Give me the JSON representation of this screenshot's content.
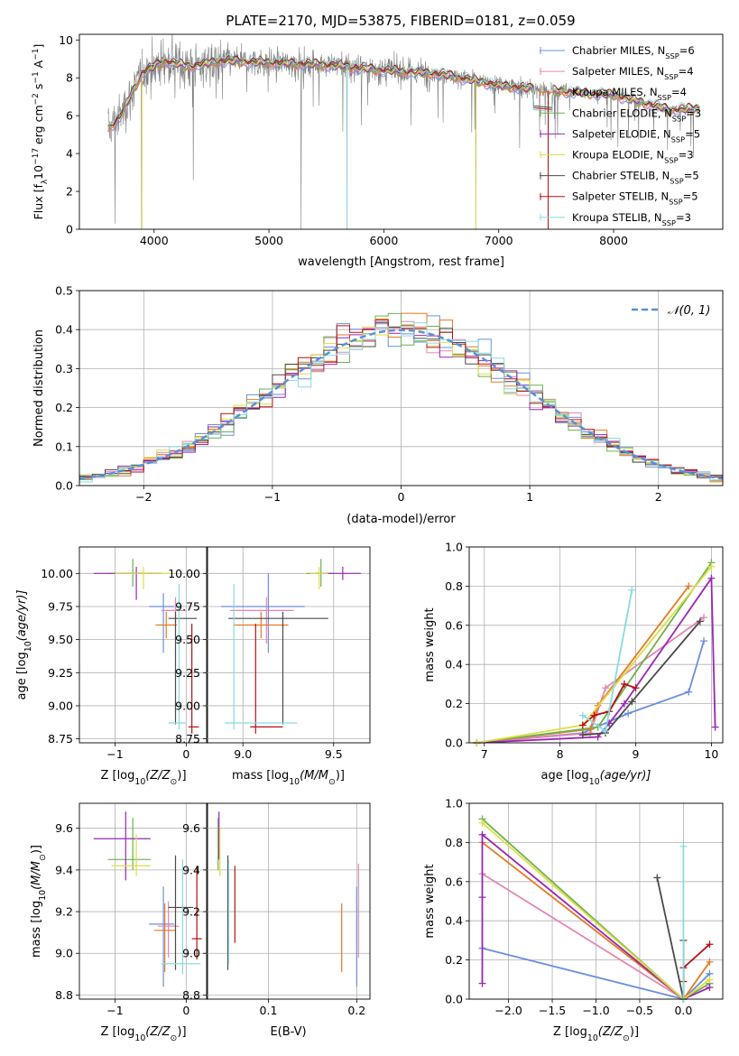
{
  "title": "PLATE=2170, MJD=53875, FIBERID=0181, z=0.059",
  "colors": {
    "Chabrier MILES": "#6a8fdc",
    "Salpeter MILES": "#e685b4",
    "Kroupa MILES": "#e67a21",
    "Chabrier ELODIE": "#6cb24a",
    "Salpeter ELODIE": "#9a27b2",
    "Kroupa ELODIE": "#dede46",
    "Chabrier STELIB": "#4a4a4a",
    "Salpeter STELIB": "#b31212",
    "Kroupa STELIB": "#86dce0",
    "data": "#808080",
    "normal": "#5b8fd8"
  },
  "legend_spectrum": [
    {
      "lib": "Chabrier MILES",
      "n": "6"
    },
    {
      "lib": "Salpeter MILES",
      "n": "4"
    },
    {
      "lib": "Kroupa MILES",
      "n": "4"
    },
    {
      "lib": "Chabrier ELODIE",
      "n": "3"
    },
    {
      "lib": "Salpeter ELODIE",
      "n": "5"
    },
    {
      "lib": "Kroupa ELODIE",
      "n": "3"
    },
    {
      "lib": "Chabrier STELIB",
      "n": "5"
    },
    {
      "lib": "Salpeter STELIB",
      "n": "5"
    },
    {
      "lib": "Kroupa STELIB",
      "n": "3"
    }
  ],
  "legend_hist": {
    "label": "𝒩(0, 1)"
  },
  "chart_data": [
    {
      "id": "spectrum",
      "type": "line",
      "xlabel": "wavelength [Angstrom, rest frame]",
      "ylabel_parts": [
        "Flux [f",
        "λ",
        "10",
        "−17",
        " erg cm",
        "−2",
        " s",
        "−1",
        " A",
        "−1",
        "]"
      ],
      "xlim": [
        3350,
        8950
      ],
      "ylim": [
        0,
        10.3
      ],
      "xticks": [
        4000,
        5000,
        6000,
        7000,
        8000
      ],
      "yticks": [
        0,
        2,
        4,
        6,
        8,
        10
      ],
      "grid": false,
      "legend_position": "top-right",
      "continuum_knots": [
        [
          3600,
          5.3
        ],
        [
          3700,
          5.9
        ],
        [
          3900,
          8.3
        ],
        [
          4100,
          8.9
        ],
        [
          4300,
          8.6
        ],
        [
          4600,
          8.9
        ],
        [
          5000,
          8.8
        ],
        [
          5500,
          8.7
        ],
        [
          6000,
          8.4
        ],
        [
          6500,
          8.2
        ],
        [
          7000,
          7.6
        ],
        [
          7500,
          7.3
        ],
        [
          8000,
          7.1
        ],
        [
          8500,
          6.3
        ],
        [
          8750,
          6.4
        ]
      ],
      "dropouts": [
        [
          3660,
          0.3
        ],
        [
          3890,
          0
        ],
        [
          4340,
          2.6
        ],
        [
          5280,
          0
        ],
        [
          5680,
          0
        ],
        [
          6800,
          0
        ],
        [
          7430,
          0
        ]
      ]
    },
    {
      "id": "residual-hist",
      "type": "histogram",
      "xlabel": "(data-model)/error",
      "ylabel": "Normed distribution",
      "xlim": [
        -2.5,
        2.5
      ],
      "ylim": [
        0,
        0.5
      ],
      "xticks": [
        -2,
        -1,
        0,
        1,
        2
      ],
      "yticks": [
        0.0,
        0.1,
        0.2,
        0.3,
        0.4,
        0.5
      ],
      "grid": true,
      "bin_width": 0.1,
      "overlay": "normal pdf, mean 0, sigma 1"
    },
    {
      "id": "age-vs-z",
      "type": "errorbar",
      "xlabel_parts": [
        "Z [log",
        "10",
        "(Z/Z",
        "⊙",
        ")]"
      ],
      "ylabel_parts": [
        "age  [log",
        "10",
        "(age/yr)]"
      ],
      "xlim": [
        -1.5,
        0.3
      ],
      "ylim": [
        8.72,
        10.2
      ],
      "xticks": [
        -1,
        0
      ],
      "yticks": [
        8.75,
        9.0,
        9.25,
        9.5,
        9.75,
        10.0
      ],
      "grid": true,
      "points": [
        {
          "lib": "Chabrier MILES",
          "x": -0.32,
          "xerr": [
            0.2,
            0.15
          ],
          "y": 9.75,
          "yerr": [
            0.35,
            0.1
          ]
        },
        {
          "lib": "Salpeter MILES",
          "x": -0.15,
          "xerr": [
            0.2,
            0.15
          ],
          "y": 9.72,
          "yerr": [
            0.1,
            0.1
          ]
        },
        {
          "lib": "Kroupa MILES",
          "x": -0.28,
          "xerr": [
            0.15,
            0.15
          ],
          "y": 9.61,
          "yerr": [
            0.1,
            0.1
          ]
        },
        {
          "lib": "Chabrier ELODIE",
          "x": -0.75,
          "xerr": [
            0.35,
            0.3
          ],
          "y": 10.0,
          "yerr": [
            0.1,
            0.11
          ]
        },
        {
          "lib": "Salpeter ELODIE",
          "x": -0.7,
          "xerr": [
            0.6,
            0.35
          ],
          "y": 10.0,
          "yerr": [
            0.2,
            0.05
          ]
        },
        {
          "lib": "Kroupa ELODIE",
          "x": -0.6,
          "xerr": [
            0.4,
            0.4
          ],
          "y": 10.0,
          "yerr": [
            0.12,
            0.05
          ]
        },
        {
          "lib": "Chabrier STELIB",
          "x": -0.15,
          "xerr": [
            0.1,
            0.3
          ],
          "y": 9.66,
          "yerr": [
            0.8,
            0.05
          ]
        },
        {
          "lib": "Salpeter STELIB",
          "x": 0.08,
          "xerr": [
            0.05,
            0.1
          ],
          "y": 8.84,
          "yerr": [
            0.05,
            0.78
          ]
        },
        {
          "lib": "Kroupa STELIB",
          "x": -0.1,
          "xerr": [
            0.15,
            0.1
          ],
          "y": 8.87,
          "yerr": [
            0.05,
            1.05
          ]
        }
      ]
    },
    {
      "id": "age-vs-mass",
      "type": "errorbar",
      "xlabel_parts": [
        "mass [log",
        "10",
        "(M/M",
        "⊙",
        ")]"
      ],
      "ylabel_parts": [],
      "xlim": [
        8.8,
        9.7
      ],
      "ylim": [
        8.72,
        10.2
      ],
      "xticks": [
        9.0,
        9.5
      ],
      "yticks": [
        8.75,
        9.0,
        9.25,
        9.5,
        9.75,
        10.0
      ],
      "grid": true,
      "points": [
        {
          "lib": "Chabrier MILES",
          "x": 9.14,
          "xerr": [
            0.26,
            0.2
          ],
          "y": 9.75,
          "yerr": [
            0.35,
            0.25
          ]
        },
        {
          "lib": "Salpeter MILES",
          "x": 9.13,
          "xerr": [
            0.2,
            0.15
          ],
          "y": 9.72,
          "yerr": [
            0.25,
            0.1
          ]
        },
        {
          "lib": "Kroupa MILES",
          "x": 9.1,
          "xerr": [
            0.15,
            0.15
          ],
          "y": 9.61,
          "yerr": [
            0.1,
            0.1
          ]
        },
        {
          "lib": "Chabrier ELODIE",
          "x": 9.43,
          "xerr": [
            0.08,
            0.07
          ],
          "y": 10.0,
          "yerr": [
            0.1,
            0.11
          ]
        },
        {
          "lib": "Salpeter ELODIE",
          "x": 9.55,
          "xerr": [
            0.15,
            0.1
          ],
          "y": 10.0,
          "yerr": [
            0.05,
            0.05
          ]
        },
        {
          "lib": "Kroupa ELODIE",
          "x": 9.42,
          "xerr": [
            0.05,
            0.05
          ],
          "y": 10.0,
          "yerr": [
            0.12,
            0.05
          ]
        },
        {
          "lib": "Chabrier STELIB",
          "x": 9.22,
          "xerr": [
            0.3,
            0.25
          ],
          "y": 9.66,
          "yerr": [
            0.8,
            0.05
          ]
        },
        {
          "lib": "Salpeter STELIB",
          "x": 9.07,
          "xerr": [
            0.03,
            0.15
          ],
          "y": 8.84,
          "yerr": [
            0.05,
            0.78
          ]
        },
        {
          "lib": "Kroupa STELIB",
          "x": 8.95,
          "xerr": [
            0.05,
            0.35
          ],
          "y": 8.87,
          "yerr": [
            0.05,
            1.05
          ]
        }
      ]
    },
    {
      "id": "mass-weight-vs-age",
      "type": "line",
      "xlabel_parts": [
        "age  [log",
        "10",
        "(age/yr)]"
      ],
      "ylabel": "mass weight",
      "xlim": [
        6.8,
        10.15
      ],
      "ylim": [
        0,
        1
      ],
      "xticks": [
        7,
        8,
        9,
        10
      ],
      "yticks": [
        0.0,
        0.2,
        0.4,
        0.6,
        0.8,
        1.0
      ],
      "grid": true,
      "series": [
        {
          "lib": "Chabrier MILES",
          "x": [
            6.9,
            8.3,
            8.9,
            9.7,
            9.9
          ],
          "y": [
            0.0,
            0.05,
            0.15,
            0.26,
            0.52
          ]
        },
        {
          "lib": "Salpeter MILES",
          "x": [
            6.9,
            8.4,
            8.6,
            9.9
          ],
          "y": [
            0.0,
            0.05,
            0.28,
            0.64
          ]
        },
        {
          "lib": "Kroupa MILES",
          "x": [
            6.9,
            8.4,
            8.5,
            9.7
          ],
          "y": [
            0.0,
            0.07,
            0.19,
            0.8
          ]
        },
        {
          "lib": "Chabrier ELODIE",
          "x": [
            6.9,
            8.5,
            10.0
          ],
          "y": [
            0.0,
            0.08,
            0.92
          ]
        },
        {
          "lib": "Salpeter ELODIE",
          "x": [
            6.9,
            8.5,
            8.65,
            8.85,
            10.0,
            10.05
          ],
          "y": [
            0.0,
            0.03,
            0.1,
            0.2,
            0.84,
            0.08
          ]
        },
        {
          "lib": "Kroupa ELODIE",
          "x": [
            6.9,
            8.3,
            10.0
          ],
          "y": [
            0.0,
            0.09,
            0.9
          ]
        },
        {
          "lib": "Chabrier STELIB",
          "x": [
            8.3,
            8.6,
            8.95,
            9.85
          ],
          "y": [
            0.04,
            0.05,
            0.21,
            0.62
          ]
        },
        {
          "lib": "Salpeter STELIB",
          "x": [
            8.3,
            8.45,
            8.65,
            8.85,
            9.0
          ],
          "y": [
            0.09,
            0.14,
            0.16,
            0.3,
            0.28
          ]
        },
        {
          "lib": "Kroupa STELIB",
          "x": [
            8.3,
            8.6,
            8.95
          ],
          "y": [
            0.14,
            0.06,
            0.78
          ]
        }
      ]
    },
    {
      "id": "mass-vs-z",
      "type": "errorbar",
      "xlabel_parts": [
        "Z [log",
        "10",
        "(Z/Z",
        "⊙",
        ")]"
      ],
      "ylabel_parts": [
        "mass [log",
        "10",
        "(M/M",
        "⊙",
        ")]"
      ],
      "xlim": [
        -1.5,
        0.3
      ],
      "ylim": [
        8.78,
        9.72
      ],
      "xticks": [
        -1,
        0
      ],
      "yticks": [
        8.8,
        9.0,
        9.2,
        9.4,
        9.6
      ],
      "grid": true,
      "points": [
        {
          "lib": "Chabrier MILES",
          "x": -0.32,
          "xerr": [
            0.2,
            0.15
          ],
          "y": 9.14,
          "yerr": [
            0.3,
            0.18
          ]
        },
        {
          "lib": "Salpeter MILES",
          "x": -0.25,
          "xerr": [
            0.15,
            0.15
          ],
          "y": 9.13,
          "yerr": [
            0.15,
            0.12
          ]
        },
        {
          "lib": "Kroupa MILES",
          "x": -0.3,
          "xerr": [
            0.15,
            0.15
          ],
          "y": 9.11,
          "yerr": [
            0.2,
            0.13
          ]
        },
        {
          "lib": "Chabrier ELODIE",
          "x": -0.75,
          "xerr": [
            0.35,
            0.25
          ],
          "y": 9.45,
          "yerr": [
            0.05,
            0.2
          ]
        },
        {
          "lib": "Salpeter ELODIE",
          "x": -0.85,
          "xerr": [
            0.45,
            0.35
          ],
          "y": 9.55,
          "yerr": [
            0.2,
            0.13
          ]
        },
        {
          "lib": "Kroupa ELODIE",
          "x": -0.7,
          "xerr": [
            0.35,
            0.2
          ],
          "y": 9.42,
          "yerr": [
            0.05,
            0.15
          ]
        },
        {
          "lib": "Chabrier STELIB",
          "x": -0.15,
          "xerr": [
            0.1,
            0.25
          ],
          "y": 9.22,
          "yerr": [
            0.3,
            0.25
          ]
        },
        {
          "lib": "Salpeter STELIB",
          "x": 0.15,
          "xerr": [
            0.07,
            0.07
          ],
          "y": 9.07,
          "yerr": [
            0.1,
            0.35
          ]
        },
        {
          "lib": "Kroupa STELIB",
          "x": -0.05,
          "xerr": [
            0.3,
            0.25
          ],
          "y": 8.95,
          "yerr": [
            0.05,
            0.5
          ]
        }
      ]
    },
    {
      "id": "mass-vs-ebv",
      "type": "errorbar",
      "xlabel": "E(B-V)",
      "ylabel_parts": [],
      "xlim": [
        0.03,
        0.215
      ],
      "ylim": [
        8.78,
        9.72
      ],
      "xticks": [
        0.1,
        0.2
      ],
      "yticks": [
        8.8,
        9.0,
        9.2,
        9.4,
        9.6
      ],
      "grid": true,
      "points": [
        {
          "lib": "Chabrier MILES",
          "x": 0.2,
          "y": 9.14,
          "yerr": [
            0.3,
            0.18
          ]
        },
        {
          "lib": "Salpeter MILES",
          "x": 0.202,
          "y": 9.13,
          "yerr": [
            0.15,
            0.3
          ]
        },
        {
          "lib": "Kroupa MILES",
          "x": 0.183,
          "y": 9.11,
          "yerr": [
            0.2,
            0.13
          ]
        },
        {
          "lib": "Chabrier ELODIE",
          "x": 0.043,
          "y": 9.45,
          "yerr": [
            0.05,
            0.2
          ]
        },
        {
          "lib": "Salpeter ELODIE",
          "x": 0.044,
          "y": 9.55,
          "yerr": [
            0.1,
            0.13
          ]
        },
        {
          "lib": "Kroupa ELODIE",
          "x": 0.045,
          "y": 9.42,
          "yerr": [
            0.05,
            0.18
          ]
        },
        {
          "lib": "Chabrier STELIB",
          "x": 0.054,
          "y": 9.22,
          "yerr": [
            0.3,
            0.25
          ]
        },
        {
          "lib": "Salpeter STELIB",
          "x": 0.062,
          "y": 9.2,
          "yerr": [
            0.15,
            0.22
          ]
        },
        {
          "lib": "Kroupa STELIB",
          "x": 0.055,
          "y": 9.15,
          "yerr": [
            0.2,
            0.3
          ]
        }
      ]
    },
    {
      "id": "mass-weight-vs-z",
      "type": "line",
      "xlabel_parts": [
        "Z [log",
        "10",
        "(Z/Z",
        "⊙",
        ")]"
      ],
      "ylabel": "mass weight",
      "xlim": [
        -2.45,
        0.45
      ],
      "ylim": [
        0,
        1
      ],
      "xticks": [
        -2.0,
        -1.5,
        -1.0,
        -0.5,
        0.0
      ],
      "yticks": [
        0.0,
        0.2,
        0.4,
        0.6,
        0.8,
        1.0
      ],
      "grid": true,
      "series": [
        {
          "lib": "Chabrier MILES",
          "x": [
            -2.3,
            0.0,
            0.3
          ],
          "y": [
            0.26,
            0.0,
            0.13
          ]
        },
        {
          "lib": "Salpeter MILES",
          "x": [
            -2.3,
            0.0,
            0.3
          ],
          "y": [
            0.64,
            0.0,
            0.08
          ]
        },
        {
          "lib": "Kroupa MILES",
          "x": [
            -2.3,
            0.0,
            0.3
          ],
          "y": [
            0.8,
            0.0,
            0.19
          ]
        },
        {
          "lib": "Chabrier ELODIE",
          "x": [
            -2.3,
            0.0,
            0.3
          ],
          "y": [
            0.92,
            0.0,
            0.08
          ]
        },
        {
          "lib": "Salpeter ELODIE",
          "x": [
            -2.3,
            -2.3,
            -2.3,
            0.0,
            0.3
          ],
          "y": [
            0.08,
            0.52,
            0.84,
            0.0,
            0.06
          ]
        },
        {
          "lib": "Kroupa ELODIE",
          "x": [
            -2.3,
            0.0,
            0.3
          ],
          "y": [
            0.9,
            0.0,
            0.1
          ]
        },
        {
          "lib": "Chabrier STELIB",
          "x": [
            -0.3,
            0.0,
            0.0
          ],
          "y": [
            0.62,
            0.0,
            0.3
          ]
        },
        {
          "lib": "Salpeter STELIB",
          "x": [
            0.0,
            0.0,
            0.3
          ],
          "y": [
            0.09,
            0.16,
            0.28
          ]
        },
        {
          "lib": "Kroupa STELIB",
          "x": [
            0.0,
            0.0
          ],
          "y": [
            0.0,
            0.78
          ]
        }
      ]
    }
  ]
}
